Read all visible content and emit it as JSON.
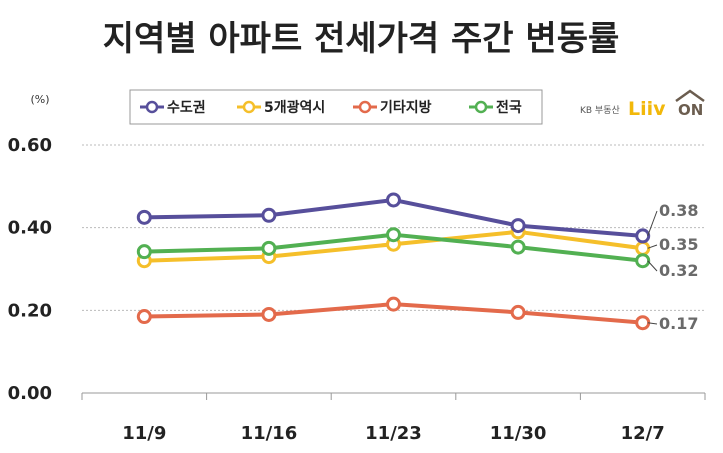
{
  "chart_data": {
    "type": "line",
    "title": "지역별 아파트 전세가격 주간 변동률",
    "unit": "(%)",
    "categories": [
      "11/9",
      "11/16",
      "11/23",
      "11/30",
      "12/7"
    ],
    "ylim": [
      0,
      0.6
    ],
    "yticks": [
      "0.00",
      "0.20",
      "0.40",
      "0.60"
    ],
    "grid": true,
    "legend_position": "top",
    "series": [
      {
        "name": "수도권",
        "color": "#574f9b",
        "values": [
          0.425,
          0.43,
          0.467,
          0.405,
          0.38
        ],
        "end_label": "0.38"
      },
      {
        "name": "5개광역시",
        "color": "#f5bf2a",
        "values": [
          0.32,
          0.33,
          0.36,
          0.39,
          0.35
        ],
        "end_label": "0.35"
      },
      {
        "name": "기타지방",
        "color": "#e36a4b",
        "values": [
          0.185,
          0.19,
          0.215,
          0.195,
          0.17
        ],
        "end_label": "0.17"
      },
      {
        "name": "전국",
        "color": "#52b052",
        "values": [
          0.342,
          0.35,
          0.383,
          0.353,
          0.32
        ],
        "end_label": "0.32"
      }
    ]
  },
  "logo": {
    "small": "KB 부동산",
    "big": "Liiv",
    "on": "ON"
  }
}
